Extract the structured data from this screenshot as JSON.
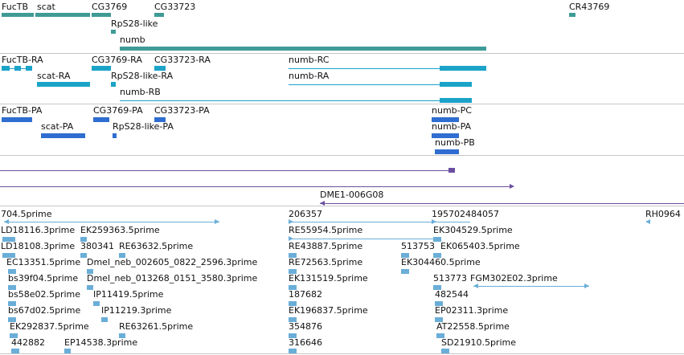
{
  "colors": {
    "gene": "#3f9b96",
    "transcript": "#1ba3c8",
    "protein": "#2f6dd0",
    "contig": "#6b4ea0",
    "est": "#6aaed8",
    "separator": "#c8c8c8"
  },
  "tracks": {
    "genes": [
      {
        "label": "FucTB"
      },
      {
        "label": "scat"
      },
      {
        "label": "CG3769"
      },
      {
        "label": "CG33723"
      },
      {
        "label": "CR43769"
      },
      {
        "label": "RpS28-like"
      },
      {
        "label": "numb"
      }
    ],
    "transcripts": [
      {
        "label": "FucTB-RA"
      },
      {
        "label": "CG3769-RA"
      },
      {
        "label": "CG33723-RA"
      },
      {
        "label": "numb-RC"
      },
      {
        "label": "scat-RA"
      },
      {
        "label": "RpS28-like-RA"
      },
      {
        "label": "numb-RA"
      },
      {
        "label": "numb-RB"
      }
    ],
    "proteins": [
      {
        "label": "FucTB-PA"
      },
      {
        "label": "CG3769-PA"
      },
      {
        "label": "CG33723-PA"
      },
      {
        "label": "numb-PC"
      },
      {
        "label": "scat-PA"
      },
      {
        "label": "RpS28-like-PA"
      },
      {
        "label": "numb-PA"
      },
      {
        "label": "numb-PB"
      }
    ],
    "contigs": [
      {
        "label": "DME1-006G08"
      }
    ],
    "ests": [
      {
        "label": "704.5prime"
      },
      {
        "label": "206357"
      },
      {
        "label": "195702484057"
      },
      {
        "label": "RH0964"
      },
      {
        "label": "LD18116.3prime"
      },
      {
        "label": "EK259363.5prime"
      },
      {
        "label": "RE55954.5prime"
      },
      {
        "label": "EK304529.5prime"
      },
      {
        "label": "LD18108.3prime"
      },
      {
        "label": "380341"
      },
      {
        "label": "RE63632.5prime"
      },
      {
        "label": "RE43887.5prime"
      },
      {
        "label": "513753"
      },
      {
        "label": "EK065403.5prime"
      },
      {
        "label": "EC13351.5prime"
      },
      {
        "label": "Dmel_neb_002605_0822_2596.3prime"
      },
      {
        "label": "RE72563.5prime"
      },
      {
        "label": "EK304460.5prime"
      },
      {
        "label": "bs39f04.5prime"
      },
      {
        "label": "Dmel_neb_013268_0151_3580.3prime"
      },
      {
        "label": "EK131519.5prime"
      },
      {
        "label": "513773"
      },
      {
        "label": "FGM302E02.3prime"
      },
      {
        "label": "bs58e02.5prime"
      },
      {
        "label": "IP11419.5prime"
      },
      {
        "label": "187682"
      },
      {
        "label": "482544"
      },
      {
        "label": "bs67d02.5prime"
      },
      {
        "label": "IP11219.3prime"
      },
      {
        "label": "EK196837.5prime"
      },
      {
        "label": "EP02311.3prime"
      },
      {
        "label": "EK292837.5prime"
      },
      {
        "label": "RE63261.5prime"
      },
      {
        "label": "354876"
      },
      {
        "label": "AT22558.5prime"
      },
      {
        "label": "442882"
      },
      {
        "label": "EP14538.3prime"
      },
      {
        "label": "316646"
      },
      {
        "label": "SD21910.5prime"
      }
    ]
  }
}
